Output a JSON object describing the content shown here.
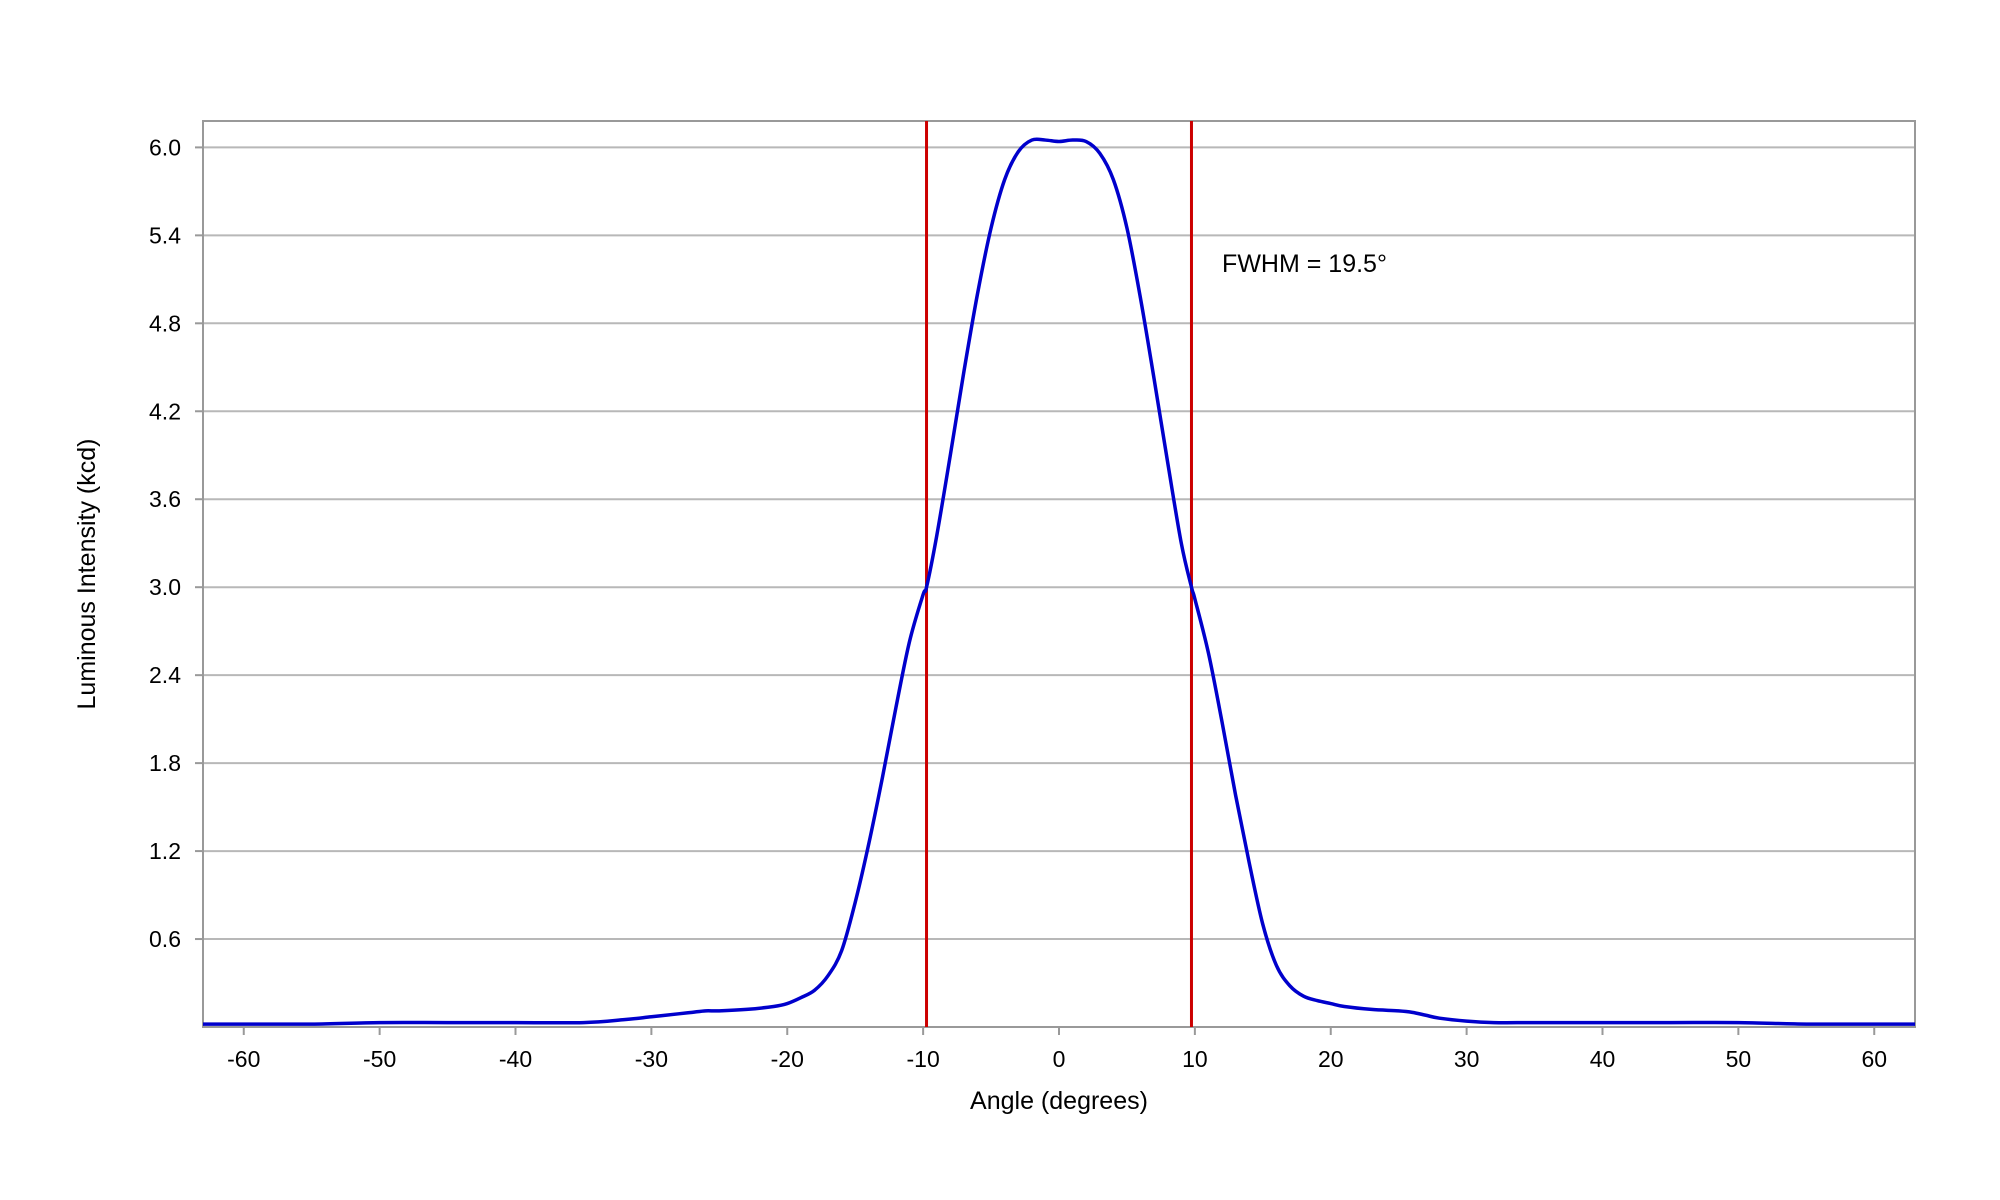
{
  "chart_data": {
    "type": "line",
    "title": "",
    "xlabel": "Angle (degrees)",
    "ylabel": "Luminous Intensity (kcd)",
    "xlim": [
      -63,
      63
    ],
    "ylim": [
      0,
      6.18
    ],
    "x_ticks": [
      -60,
      -50,
      -40,
      -30,
      -20,
      -10,
      0,
      10,
      20,
      30,
      40,
      50,
      60
    ],
    "x_tick_labels": [
      "-60",
      "-50",
      "-40",
      "-30",
      "-20",
      "-10",
      "0",
      "10",
      "20",
      "30",
      "40",
      "50",
      "60"
    ],
    "y_ticks": [
      0.6,
      1.2,
      1.8,
      2.4,
      3.0,
      3.6,
      4.2,
      4.8,
      5.4,
      6.0
    ],
    "y_tick_labels": [
      "0.6",
      "1.2",
      "1.8",
      "2.4",
      "3.0",
      "3.6",
      "4.2",
      "4.8",
      "5.4",
      "6.0"
    ],
    "grid": true,
    "series": [
      {
        "color": "#0000cc",
        "x": [
          -63,
          -60,
          -55,
          -50,
          -45,
          -40,
          -35,
          -32,
          -30,
          -28,
          -27,
          -26,
          -25,
          -23,
          -21,
          -20,
          -19,
          -18,
          -17,
          -16,
          -15,
          -14,
          -13,
          -12,
          -11,
          -10,
          -9.75,
          -9,
          -8,
          -7,
          -6,
          -5,
          -4,
          -3,
          -2,
          -1,
          0,
          1,
          2,
          3,
          4,
          5,
          6,
          7,
          8,
          9,
          9.75,
          10,
          11,
          12,
          13,
          14,
          15,
          16,
          17,
          18,
          19,
          20,
          21,
          23,
          25,
          26,
          27,
          28,
          30,
          32,
          35,
          40,
          45,
          50,
          55,
          60,
          63
        ],
        "y": [
          0.02,
          0.02,
          0.02,
          0.03,
          0.03,
          0.03,
          0.03,
          0.05,
          0.07,
          0.09,
          0.1,
          0.11,
          0.11,
          0.12,
          0.14,
          0.16,
          0.2,
          0.25,
          0.35,
          0.52,
          0.85,
          1.25,
          1.7,
          2.18,
          2.63,
          2.95,
          3.0,
          3.35,
          3.9,
          4.47,
          5.0,
          5.45,
          5.78,
          5.97,
          6.05,
          6.05,
          6.04,
          6.05,
          6.04,
          5.96,
          5.78,
          5.45,
          4.97,
          4.42,
          3.85,
          3.3,
          3.0,
          2.92,
          2.55,
          2.08,
          1.58,
          1.12,
          0.7,
          0.42,
          0.28,
          0.21,
          0.18,
          0.16,
          0.14,
          0.12,
          0.11,
          0.1,
          0.08,
          0.06,
          0.04,
          0.03,
          0.03,
          0.03,
          0.03,
          0.03,
          0.02,
          0.02,
          0.02
        ]
      }
    ],
    "reference_lines": [
      {
        "x": -9.75,
        "color": "#cc0000"
      },
      {
        "x": 9.75,
        "color": "#cc0000"
      }
    ],
    "annotation": {
      "text": "FWHM = 19.5°",
      "x": 12,
      "y": 5.15
    },
    "colors": {
      "series": "#0000cc",
      "reference": "#cc0000",
      "grid": "#b8b8b8",
      "frame": "#999999"
    }
  }
}
